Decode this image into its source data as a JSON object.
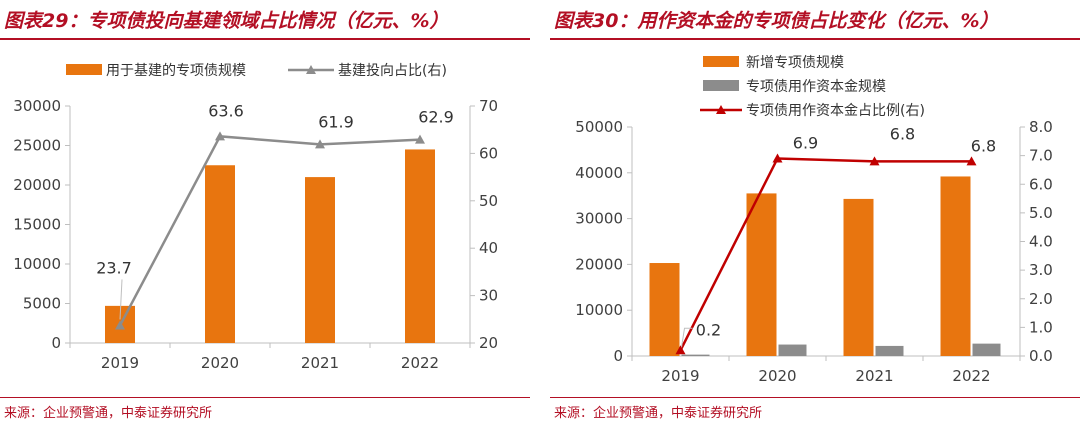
{
  "chart_data": [
    {
      "type": "bar+line",
      "title": "图表29：专项债投向基建领域占比情况（亿元、%）",
      "source": "来源：企业预警通，中泰证券研究所",
      "categories": [
        "2019",
        "2020",
        "2021",
        "2022"
      ],
      "series": [
        {
          "name": "用于基建的专项债规模",
          "type": "bar",
          "axis": "left",
          "color": "#e8750f",
          "values": [
            4700,
            22500,
            21000,
            24500
          ]
        },
        {
          "name": "基建投向占比(右)",
          "type": "line",
          "axis": "right",
          "color": "#8c8c8c",
          "values": [
            23.7,
            63.6,
            61.9,
            62.9
          ],
          "labels": [
            "23.7",
            "63.6",
            "61.9",
            "62.9"
          ]
        }
      ],
      "y_left": {
        "min": 0,
        "max": 30000,
        "ticks": [
          "0",
          "5000",
          "10000",
          "15000",
          "20000",
          "25000",
          "30000"
        ]
      },
      "y_right": {
        "min": 20,
        "max": 70,
        "ticks": [
          "20",
          "30",
          "40",
          "50",
          "60",
          "70"
        ]
      },
      "legend": "top"
    },
    {
      "type": "bar+line",
      "title": "图表30：用作资本金的专项债占比变化（亿元、%）",
      "source": "来源：企业预警通，中泰证券研究所",
      "categories": [
        "2019",
        "2020",
        "2021",
        "2022"
      ],
      "series": [
        {
          "name": "新增专项债规模",
          "type": "bar",
          "axis": "left",
          "color": "#e8750f",
          "values": [
            20300,
            35500,
            34300,
            39200
          ]
        },
        {
          "name": "专项债用作资本金规模",
          "type": "bar",
          "axis": "left",
          "color": "#8c8c8c",
          "values": [
            300,
            2500,
            2200,
            2700
          ]
        },
        {
          "name": "专项债用作资本金占比例(右)",
          "type": "line",
          "axis": "right",
          "color": "#c00000",
          "values": [
            0.2,
            6.9,
            6.8,
            6.8
          ],
          "labels": [
            "0.2",
            "6.9",
            "6.8",
            "6.8"
          ]
        }
      ],
      "y_left": {
        "min": 0,
        "max": 50000,
        "ticks": [
          "0",
          "10000",
          "20000",
          "30000",
          "40000",
          "50000"
        ]
      },
      "y_right": {
        "min": 0,
        "max": 8,
        "ticks": [
          "0.0",
          "1.0",
          "2.0",
          "3.0",
          "4.0",
          "5.0",
          "6.0",
          "7.0",
          "8.0"
        ]
      },
      "legend": "top"
    }
  ]
}
